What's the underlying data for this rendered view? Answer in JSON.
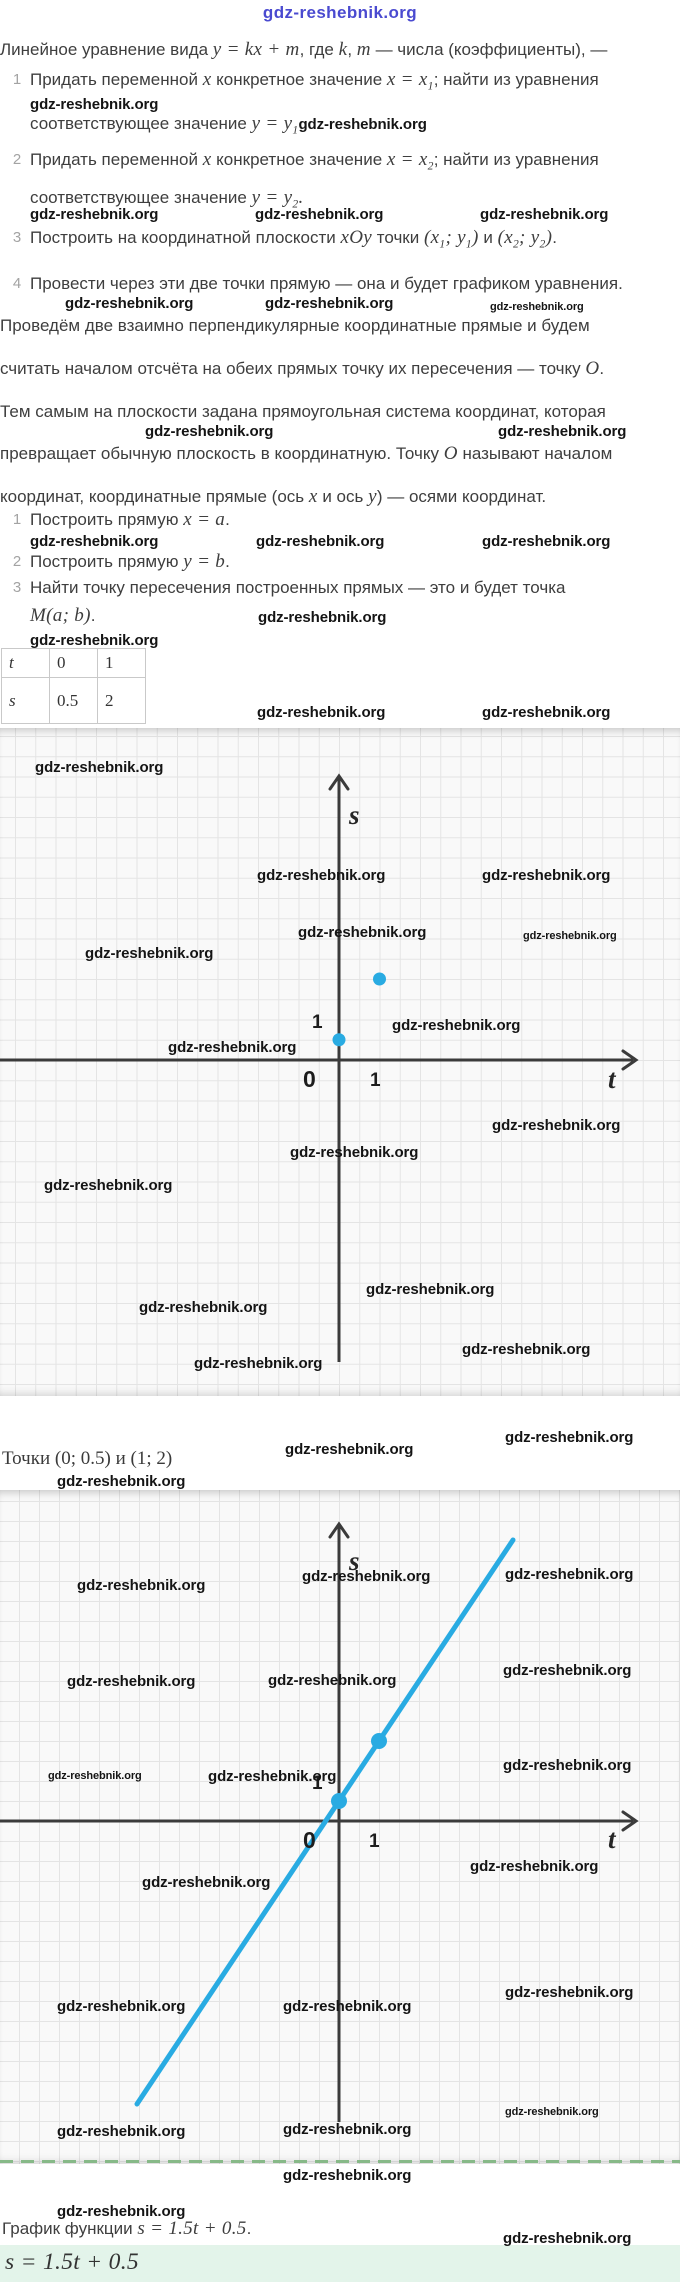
{
  "header": {
    "title": "gdz-reshebnik.org"
  },
  "watermark_text": "gdz-reshebnik.org",
  "colors": {
    "accent": "#29abe2",
    "title_blue": "#4a4ad0",
    "dashed_green": "#87b988",
    "answer_bg": "#e3f4ea",
    "axis": "#3b3b3b"
  },
  "rich": {
    "intro": [
      {
        "t": "Линейное уравнение вида "
      },
      {
        "t": "y = kx + m",
        "m": 1
      },
      {
        "t": ", где "
      },
      {
        "t": "k",
        "m": 1
      },
      {
        "t": ",  "
      },
      {
        "t": "m",
        "m": 1
      },
      {
        "t": " — числа (коэффициенты), —"
      }
    ],
    "s1i1_l1": [
      {
        "t": "Придать переменной "
      },
      {
        "t": "x",
        "m": 1
      },
      {
        "t": " конкретное значение "
      },
      {
        "t": "x = x",
        "m": 1
      },
      {
        "t": "1",
        "m": 1,
        "sub": 1
      },
      {
        "t": "; найти из уравнения"
      }
    ],
    "s1i1_l3": [
      {
        "t": "соответствующее значение "
      },
      {
        "t": "y = y",
        "m": 1
      },
      {
        "t": "1",
        "m": 1,
        "sub": 1
      },
      {
        "t": "gdz-reshebnik.org",
        "wm": 1
      }
    ],
    "s1i2_l1": [
      {
        "t": "Придать переменной "
      },
      {
        "t": "x",
        "m": 1
      },
      {
        "t": " конкретное значение "
      },
      {
        "t": "x = x",
        "m": 1
      },
      {
        "t": "2",
        "m": 1,
        "sub": 1
      },
      {
        "t": "; найти из уравнения"
      }
    ],
    "s1i2_l2": [
      {
        "t": "соответствующее значение "
      },
      {
        "t": "y = y",
        "m": 1
      },
      {
        "t": "2",
        "m": 1,
        "sub": 1
      },
      {
        "t": ".",
        "m": 1
      }
    ],
    "s1i3": [
      {
        "t": "Построить на координатной плоскости "
      },
      {
        "t": "xOy",
        "m": 1
      },
      {
        "t": " точки "
      },
      {
        "t": "(x",
        "m": 1
      },
      {
        "t": "1",
        "m": 1,
        "sub": 1
      },
      {
        "t": ";  y",
        "m": 1
      },
      {
        "t": "1",
        "m": 1,
        "sub": 1
      },
      {
        "t": ")",
        "m": 1
      },
      {
        "t": " и "
      },
      {
        "t": "(x",
        "m": 1
      },
      {
        "t": "2",
        "m": 1,
        "sub": 1
      },
      {
        "t": ";  y",
        "m": 1
      },
      {
        "t": "2",
        "m": 1,
        "sub": 1
      },
      {
        "t": ")",
        "m": 1
      },
      {
        "t": "."
      }
    ],
    "s1i4": [
      {
        "t": "Провести через эти две точки прямую — она и будет графиком уравнения."
      }
    ],
    "para_l1": [
      {
        "t": "Проведём две взаимно перпендикулярные координатные прямые и будем"
      }
    ],
    "para_l2": [
      {
        "t": "считать началом отсчёта на обеих прямых точку их пересечения — точку "
      },
      {
        "t": "O",
        "m": 1
      },
      {
        "t": "."
      }
    ],
    "para_l3": [
      {
        "t": "Тем самым на плоскости задана прямоугольная система координат, которая"
      }
    ],
    "para_l4": [
      {
        "t": "превращает обычную плоскость в координатную. Точку "
      },
      {
        "t": "O",
        "m": 1
      },
      {
        "t": " называют началом"
      }
    ],
    "para_l5": [
      {
        "t": "координат, координатные прямые (ось "
      },
      {
        "t": "x",
        "m": 1
      },
      {
        "t": " и ось "
      },
      {
        "t": "y",
        "m": 1
      },
      {
        "t": ") — осями координат."
      }
    ],
    "s2i1": [
      {
        "t": "Построить прямую "
      },
      {
        "t": "x = a",
        "m": 1
      },
      {
        "t": "."
      }
    ],
    "s2i2": [
      {
        "t": "Построить прямую "
      },
      {
        "t": "y = b",
        "m": 1
      },
      {
        "t": "."
      }
    ],
    "s2i3": [
      {
        "t": "Найти точку пересечения построенных прямых — это и будет точка"
      }
    ],
    "s2i3b": [
      {
        "t": "M(a; b)",
        "m": 1
      },
      {
        "t": "."
      }
    ],
    "between": [
      {
        "t": "Точки (0;  0.5) и (1;  2)",
        "mu": 1
      }
    ],
    "caption": [
      {
        "t": "График функции "
      },
      {
        "t": "s = 1.5t + 0.5",
        "m": 1
      },
      {
        "t": "."
      }
    ],
    "highlight": [
      {
        "t": "s = 1.5t + 0.5",
        "m": 1
      }
    ]
  },
  "list_nums": {
    "s1": [
      "1",
      "2",
      "3",
      "4"
    ],
    "s2": [
      "1",
      "2",
      "3"
    ]
  },
  "table": {
    "rows": [
      [
        "t",
        "0",
        "1"
      ],
      [
        "s",
        "0.5",
        "2"
      ]
    ]
  },
  "chart_data": [
    {
      "type": "scatter",
      "xlabel": "t",
      "ylabel": "s",
      "points": [
        [
          0,
          0.5
        ],
        [
          1,
          2
        ]
      ],
      "origin_label": "0",
      "x_tick_label": "1",
      "y_tick_label": "1",
      "x_tick_value": 1,
      "y_tick_value": 1,
      "accent_color": "#29abe2",
      "grid": true,
      "legend": "none",
      "note": "points (0; 0.5) and (1; 2) plotted on t-s plane"
    },
    {
      "type": "line",
      "xlabel": "t",
      "ylabel": "s",
      "equation": "s = 1.5t + 0.5",
      "slope": 1.5,
      "intercept": 0.5,
      "points": [
        [
          0,
          0.5
        ],
        [
          1,
          2
        ]
      ],
      "origin_label": "0",
      "x_tick_label": "1",
      "y_tick_label": "1",
      "x_tick_value": 1,
      "y_tick_value": 1,
      "accent_color": "#29abe2",
      "grid": true,
      "legend": "none",
      "note": "line through (0; 0.5) and (1; 2) drawn on t-s plane"
    }
  ]
}
